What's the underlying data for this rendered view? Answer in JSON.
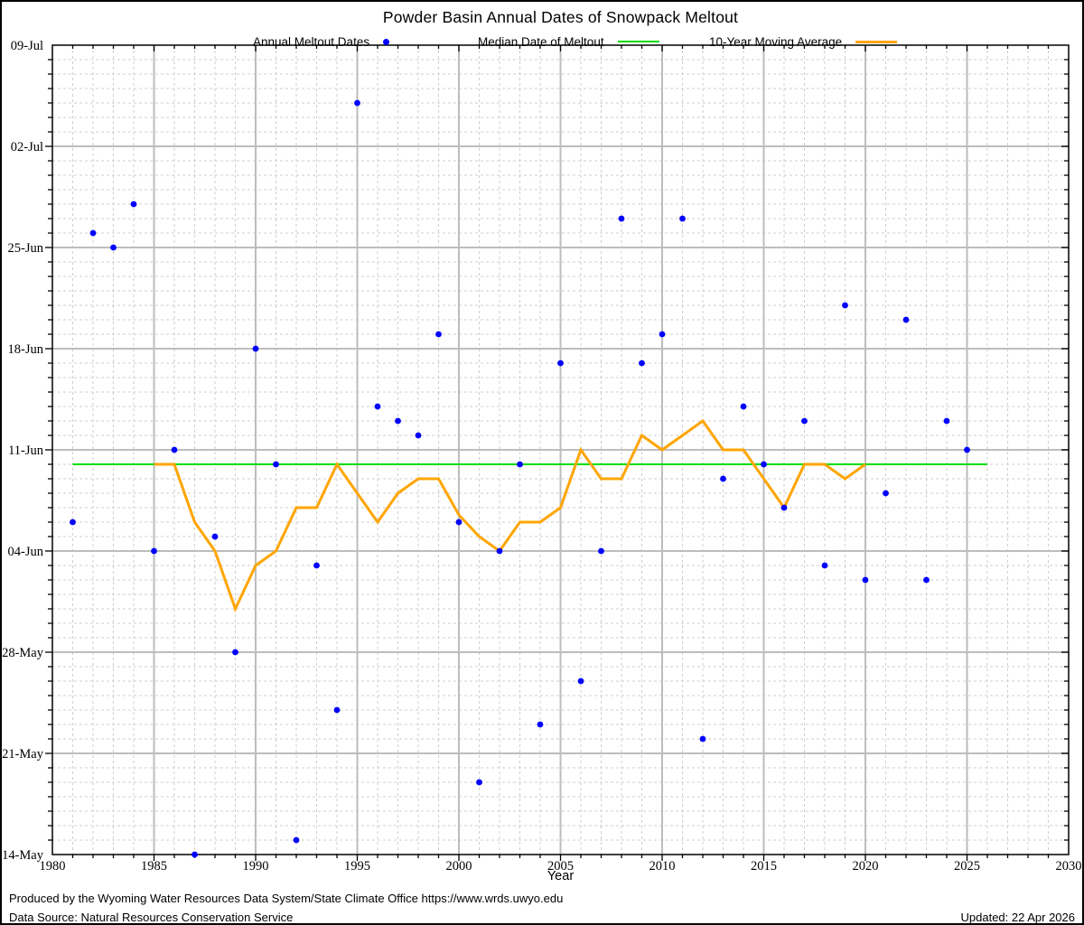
{
  "title": "Powder Basin Annual Dates of Snowpack Meltout",
  "legend": {
    "annual_label": "Annual Meltout Dates",
    "median_label": "Median Date of Meltout",
    "moving_avg_label": "10-Year Moving Average"
  },
  "xlabel": "Year",
  "footer": {
    "line1": "Produced by the Wyoming Water Resources Data System/State Climate Office https://www.wrds.uwyo.edu",
    "line2": "Data Source: Natural Resources Conservation Service",
    "updated": "Updated: 22 Apr 2026"
  },
  "colors": {
    "points": "#0000ff",
    "median": "#00dd00",
    "moving_avg": "#ffa500",
    "grid_major": "#bdbdbd",
    "grid_minor": "#cfcfcf",
    "axis": "#000000"
  },
  "chart_data": {
    "type": "scatter",
    "title": "Powder Basin Annual Dates of Snowpack Meltout",
    "xlabel": "Year",
    "ylabel": "",
    "x_range": [
      1980,
      2030
    ],
    "x_ticks": [
      1980,
      1985,
      1990,
      1995,
      2000,
      2005,
      2010,
      2015,
      2020,
      2025,
      2030
    ],
    "x_minor_tick_step": 1,
    "y_day_scale_note": "day = days after 14-May; axis spans 14-May (0, bottom) to 09-Jul (56, top)",
    "y_range_days": [
      0,
      56
    ],
    "y_ticks": [
      {
        "label": "09-Jul",
        "day": 56
      },
      {
        "label": "02-Jul",
        "day": 49
      },
      {
        "label": "25-Jun",
        "day": 42
      },
      {
        "label": "18-Jun",
        "day": 35
      },
      {
        "label": "11-Jun",
        "day": 28
      },
      {
        "label": "04-Jun",
        "day": 21
      },
      {
        "label": "28-May",
        "day": 14
      },
      {
        "label": "21-May",
        "day": 7
      },
      {
        "label": "14-May",
        "day": 0
      }
    ],
    "y_minor_tick_step_days": 1,
    "grid": true,
    "legend_position": "top",
    "annual_meltout": [
      {
        "year": 1981,
        "date": "06-Jun",
        "day": 23
      },
      {
        "year": 1982,
        "date": "26-Jun",
        "day": 43
      },
      {
        "year": 1983,
        "date": "25-Jun",
        "day": 42
      },
      {
        "year": 1984,
        "date": "28-Jun",
        "day": 45
      },
      {
        "year": 1985,
        "date": "04-Jun",
        "day": 21
      },
      {
        "year": 1986,
        "date": "11-Jun",
        "day": 28
      },
      {
        "year": 1987,
        "date": "14-May",
        "day": 0
      },
      {
        "year": 1988,
        "date": "05-Jun",
        "day": 22
      },
      {
        "year": 1989,
        "date": "28-May",
        "day": 14
      },
      {
        "year": 1990,
        "date": "18-Jun",
        "day": 35
      },
      {
        "year": 1991,
        "date": "10-Jun",
        "day": 27
      },
      {
        "year": 1992,
        "date": "15-May",
        "day": 1
      },
      {
        "year": 1993,
        "date": "03-Jun",
        "day": 20
      },
      {
        "year": 1994,
        "date": "24-May",
        "day": 10
      },
      {
        "year": 1995,
        "date": "05-Jul",
        "day": 52
      },
      {
        "year": 1996,
        "date": "14-Jun",
        "day": 31
      },
      {
        "year": 1997,
        "date": "13-Jun",
        "day": 30
      },
      {
        "year": 1998,
        "date": "12-Jun",
        "day": 29
      },
      {
        "year": 1999,
        "date": "19-Jun",
        "day": 36
      },
      {
        "year": 2000,
        "date": "06-Jun",
        "day": 23
      },
      {
        "year": 2001,
        "date": "19-May",
        "day": 5
      },
      {
        "year": 2002,
        "date": "04-Jun",
        "day": 21
      },
      {
        "year": 2003,
        "date": "10-Jun",
        "day": 27
      },
      {
        "year": 2004,
        "date": "23-May",
        "day": 9
      },
      {
        "year": 2005,
        "date": "17-Jun",
        "day": 34
      },
      {
        "year": 2006,
        "date": "26-May",
        "day": 12
      },
      {
        "year": 2007,
        "date": "04-Jun",
        "day": 21
      },
      {
        "year": 2008,
        "date": "27-Jun",
        "day": 44
      },
      {
        "year": 2009,
        "date": "17-Jun",
        "day": 34
      },
      {
        "year": 2010,
        "date": "19-Jun",
        "day": 36
      },
      {
        "year": 2011,
        "date": "27-Jun",
        "day": 44
      },
      {
        "year": 2012,
        "date": "22-May",
        "day": 8
      },
      {
        "year": 2013,
        "date": "09-Jun",
        "day": 26
      },
      {
        "year": 2014,
        "date": "14-Jun",
        "day": 31
      },
      {
        "year": 2015,
        "date": "10-Jun",
        "day": 27
      },
      {
        "year": 2016,
        "date": "07-Jun",
        "day": 24
      },
      {
        "year": 2017,
        "date": "13-Jun",
        "day": 30
      },
      {
        "year": 2018,
        "date": "03-Jun",
        "day": 20
      },
      {
        "year": 2019,
        "date": "21-Jun",
        "day": 38
      },
      {
        "year": 2020,
        "date": "02-Jun",
        "day": 19
      },
      {
        "year": 2021,
        "date": "08-Jun",
        "day": 25
      },
      {
        "year": 2022,
        "date": "20-Jun",
        "day": 37
      },
      {
        "year": 2023,
        "date": "02-Jun",
        "day": 19
      },
      {
        "year": 2024,
        "date": "13-Jun",
        "day": 30
      },
      {
        "year": 2025,
        "date": "11-Jun",
        "day": 28
      }
    ],
    "median_line": {
      "date": "10-Jun",
      "day": 27,
      "from_year": 1981,
      "to_year": 2026
    },
    "moving_average": [
      {
        "year": 1985,
        "day": 27
      },
      {
        "year": 1986,
        "day": 27
      },
      {
        "year": 1987,
        "day": 23
      },
      {
        "year": 1988,
        "day": 21
      },
      {
        "year": 1989,
        "day": 17
      },
      {
        "year": 1990,
        "day": 20
      },
      {
        "year": 1991,
        "day": 21
      },
      {
        "year": 1992,
        "day": 24
      },
      {
        "year": 1993,
        "day": 24
      },
      {
        "year": 1994,
        "day": 27
      },
      {
        "year": 1995,
        "day": 25
      },
      {
        "year": 1996,
        "day": 23
      },
      {
        "year": 1997,
        "day": 25
      },
      {
        "year": 1998,
        "day": 26
      },
      {
        "year": 1999,
        "day": 26
      },
      {
        "year": 2000,
        "day": 23.5
      },
      {
        "year": 2001,
        "day": 22
      },
      {
        "year": 2002,
        "day": 21
      },
      {
        "year": 2003,
        "day": 23
      },
      {
        "year": 2004,
        "day": 23
      },
      {
        "year": 2005,
        "day": 24
      },
      {
        "year": 2006,
        "day": 28
      },
      {
        "year": 2007,
        "day": 26
      },
      {
        "year": 2008,
        "day": 26
      },
      {
        "year": 2009,
        "day": 29
      },
      {
        "year": 2010,
        "day": 28
      },
      {
        "year": 2011,
        "day": 29
      },
      {
        "year": 2012,
        "day": 30
      },
      {
        "year": 2013,
        "day": 28
      },
      {
        "year": 2014,
        "day": 28
      },
      {
        "year": 2015,
        "day": 26
      },
      {
        "year": 2016,
        "day": 24
      },
      {
        "year": 2017,
        "day": 27
      },
      {
        "year": 2018,
        "day": 27
      },
      {
        "year": 2019,
        "day": 26
      },
      {
        "year": 2020,
        "day": 27
      }
    ]
  }
}
